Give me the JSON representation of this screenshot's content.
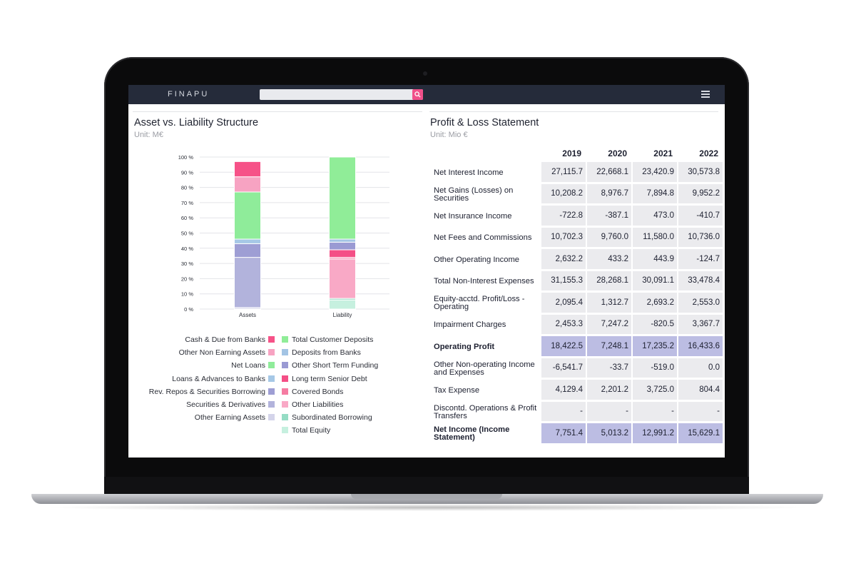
{
  "header": {
    "brand": "FINAPU",
    "search_placeholder": "",
    "search_icon": "magnifier-icon",
    "menu_icon": "hamburger-icon"
  },
  "left_panel": {
    "title": "Asset vs. Liability Structure",
    "unit": "Unit: M€"
  },
  "right_panel": {
    "title": "Profit & Loss Statement",
    "unit": "Unit: Mio €"
  },
  "chart_data": {
    "type": "bar",
    "stacked": true,
    "categories": [
      "Assets",
      "Liability"
    ],
    "yticks": [
      "0 %",
      "10 %",
      "20 %",
      "30 %",
      "40 %",
      "50 %",
      "60 %",
      "70 %",
      "80 %",
      "90 %",
      "100 %"
    ],
    "ylim": [
      0,
      100
    ],
    "grid": true,
    "series": [
      {
        "name": "Other Earning Assets",
        "color": "#d4d4ea",
        "values": [
          1,
          0
        ]
      },
      {
        "name": "Securities & Derivatives",
        "color": "#b2b3dc",
        "values": [
          33,
          0
        ]
      },
      {
        "name": "Rev. Repos & Securities Borrowing",
        "color": "#9e9ed4",
        "values": [
          9,
          0
        ]
      },
      {
        "name": "Loans & Advances to Banks",
        "color": "#a6c8e6",
        "values": [
          3,
          0
        ]
      },
      {
        "name": "Net Loans",
        "color": "#8fec9a",
        "values": [
          31,
          0
        ]
      },
      {
        "name": "Other Non Earning Assets",
        "color": "#f7a3c2",
        "values": [
          10,
          0
        ]
      },
      {
        "name": "Cash & Due from Banks",
        "color": "#f65288",
        "values": [
          10,
          0
        ]
      },
      {
        "name": "Total Equity",
        "color": "#c6f0df",
        "values": [
          0,
          6
        ]
      },
      {
        "name": "Subordinated Borrowing",
        "color": "#95dcc4",
        "values": [
          0,
          1
        ]
      },
      {
        "name": "Other Liabilities",
        "color": "#f9a9c6",
        "values": [
          0,
          26
        ]
      },
      {
        "name": "Covered Bonds",
        "color": "#f57ca2",
        "values": [
          0,
          1
        ]
      },
      {
        "name": "Long term Senior Debt",
        "color": "#f44f86",
        "values": [
          0,
          5
        ]
      },
      {
        "name": "Other Short Term Funding",
        "color": "#9a9ad3",
        "values": [
          0,
          5
        ]
      },
      {
        "name": "Deposits from Banks",
        "color": "#a3c4e4",
        "values": [
          0,
          2
        ]
      },
      {
        "name": "Total Customer Deposits",
        "color": "#90ed98",
        "values": [
          0,
          54
        ]
      }
    ]
  },
  "legend": {
    "left": [
      {
        "label": "Cash & Due from Banks",
        "color": "#f65288"
      },
      {
        "label": "Other Non Earning Assets",
        "color": "#f7a3c2"
      },
      {
        "label": "Net Loans",
        "color": "#8fec9a"
      },
      {
        "label": "Loans & Advances to Banks",
        "color": "#a6c8e6"
      },
      {
        "label": "Rev. Repos & Securities Borrowing",
        "color": "#9e9ed4"
      },
      {
        "label": "Securities & Derivatives",
        "color": "#b2b3dc"
      },
      {
        "label": "Other Earning Assets",
        "color": "#d4d4ea"
      }
    ],
    "right": [
      {
        "label": "Total Customer Deposits",
        "color": "#90ed98"
      },
      {
        "label": "Deposits from Banks",
        "color": "#a3c4e4"
      },
      {
        "label": "Other Short Term Funding",
        "color": "#9a9ad3"
      },
      {
        "label": "Long term Senior Debt",
        "color": "#f44f86"
      },
      {
        "label": "Covered Bonds",
        "color": "#f57ca2"
      },
      {
        "label": "Other Liabilities",
        "color": "#f9a9c6"
      },
      {
        "label": "Subordinated Borrowing",
        "color": "#95dcc4"
      },
      {
        "label": "Total Equity",
        "color": "#c6f0df"
      }
    ]
  },
  "pl_table": {
    "years": [
      "2019",
      "2020",
      "2021",
      "2022"
    ],
    "rows": [
      {
        "label": "Net Interest Income",
        "values": [
          "27,115.7",
          "22,668.1",
          "23,420.9",
          "30,573.8"
        ],
        "highlight": false
      },
      {
        "label": "Net Gains (Losses) on Securities",
        "values": [
          "10,208.2",
          "8,976.7",
          "7,894.8",
          "9,952.2"
        ],
        "highlight": false
      },
      {
        "label": "Net Insurance Income",
        "values": [
          "-722.8",
          "-387.1",
          "473.0",
          "-410.7"
        ],
        "highlight": false
      },
      {
        "label": "Net Fees and Commissions",
        "values": [
          "10,702.3",
          "9,760.0",
          "11,580.0",
          "10,736.0"
        ],
        "highlight": false
      },
      {
        "label": "Other Operating Income",
        "values": [
          "2,632.2",
          "433.2",
          "443.9",
          "-124.7"
        ],
        "highlight": false
      },
      {
        "label": "Total Non-Interest Expenses",
        "values": [
          "31,155.3",
          "28,268.1",
          "30,091.1",
          "33,478.4"
        ],
        "highlight": false
      },
      {
        "label": "Equity-acctd. Profit/Loss - Operating",
        "values": [
          "2,095.4",
          "1,312.7",
          "2,693.2",
          "2,553.0"
        ],
        "highlight": false
      },
      {
        "label": "Impairment Charges",
        "values": [
          "2,453.3",
          "7,247.2",
          "-820.5",
          "3,367.7"
        ],
        "highlight": false
      },
      {
        "label": "Operating Profit",
        "values": [
          "18,422.5",
          "7,248.1",
          "17,235.2",
          "16,433.6"
        ],
        "highlight": true
      },
      {
        "label": "Other Non-operating Income and Expenses",
        "values": [
          "-6,541.7",
          "-33.7",
          "-519.0",
          "0.0"
        ],
        "highlight": false
      },
      {
        "label": "Tax Expense",
        "values": [
          "4,129.4",
          "2,201.2",
          "3,725.0",
          "804.4"
        ],
        "highlight": false
      },
      {
        "label": "Discontd. Operations & Profit Transfers",
        "values": [
          "-",
          "-",
          "-",
          "-"
        ],
        "highlight": false
      },
      {
        "label": "Net Income (Income Statement)",
        "values": [
          "7,751.4",
          "5,013.2",
          "12,991.2",
          "15,629.1"
        ],
        "highlight": true
      }
    ]
  }
}
